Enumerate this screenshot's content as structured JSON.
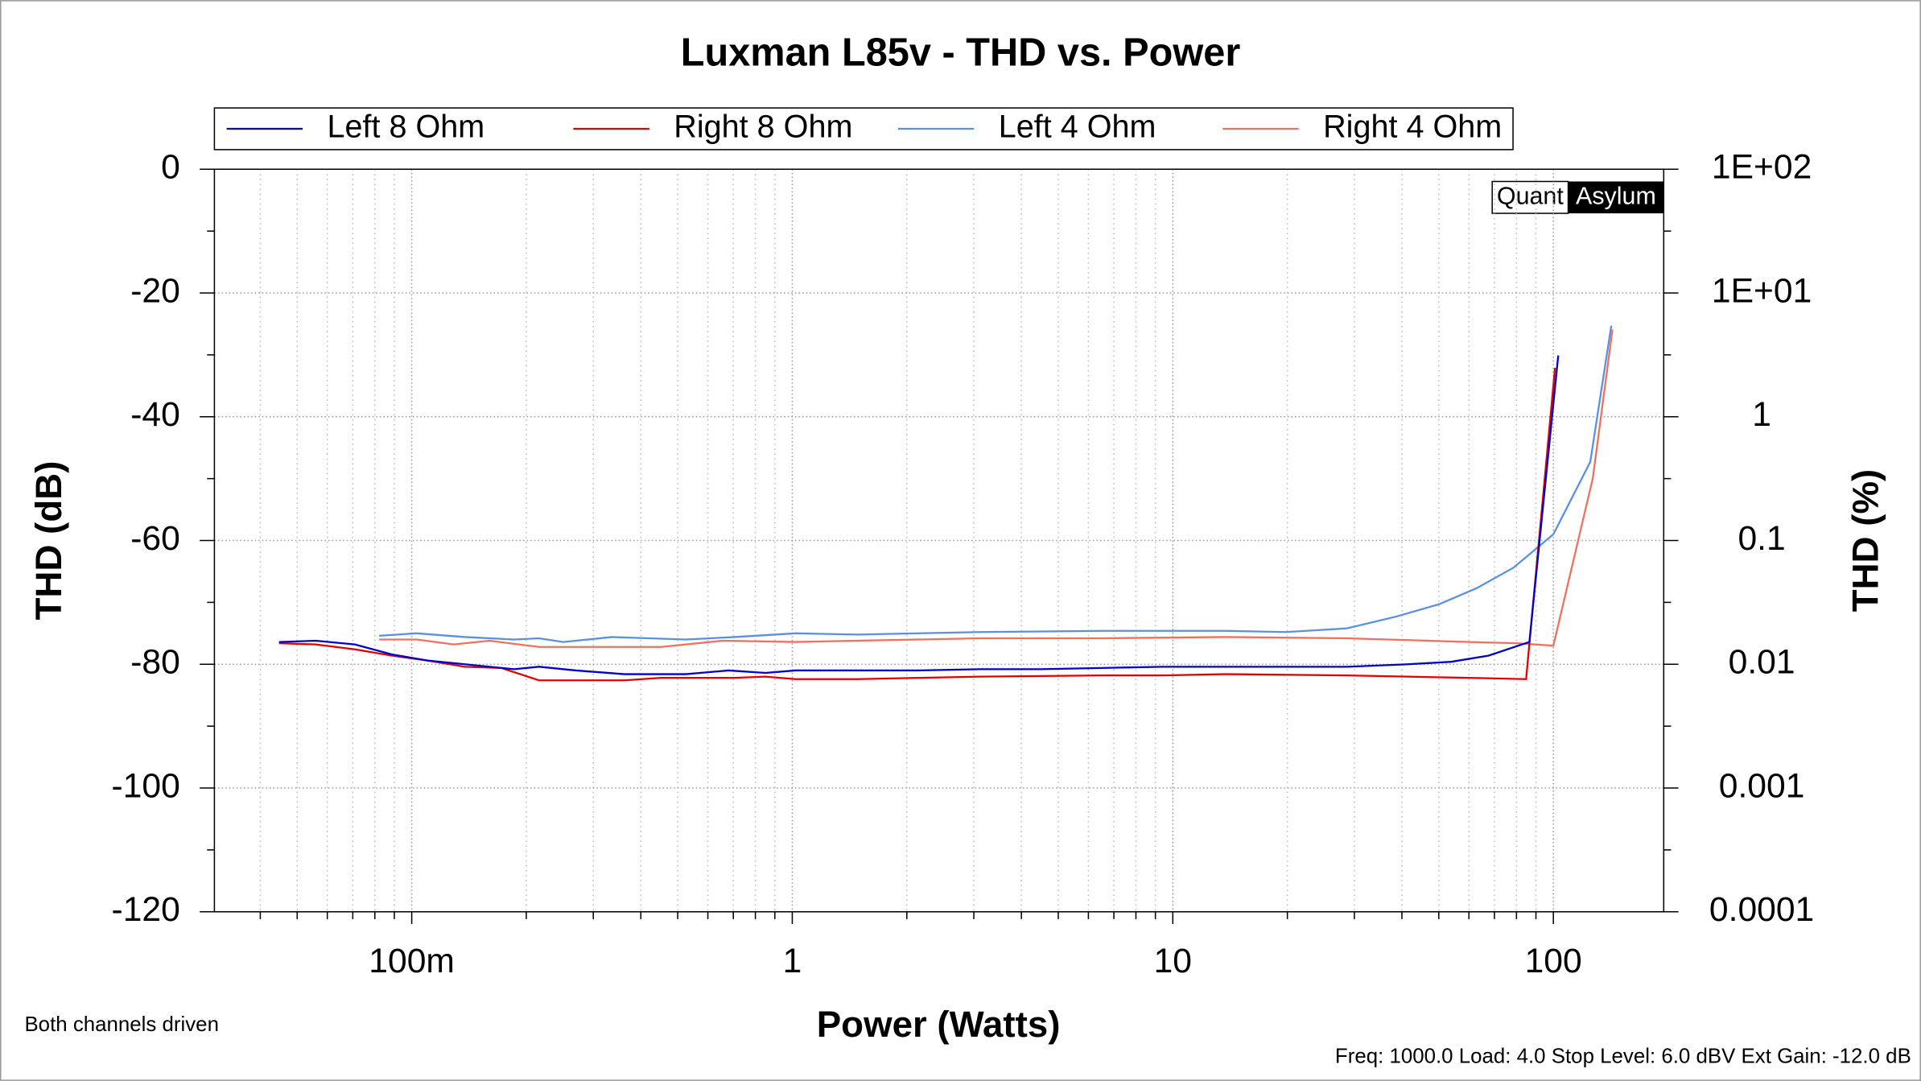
{
  "chart_data": {
    "type": "line",
    "title": "Luxman L85v - THD vs. Power",
    "xlabel": "Power (Watts)",
    "ylabel": "THD (dB)",
    "y2label": "THD (%)",
    "annotations": [
      "Both channels driven",
      "Freq: 1000.0 Load: 4.0 Stop Level: 6.0 dBV  Ext Gain: -12.0 dB"
    ],
    "watermark": [
      "Quant",
      "Asylum"
    ],
    "xscale": "log",
    "xlim": [
      0.0303,
      195
    ],
    "xticks": [
      {
        "value": 0.1,
        "label": "100m"
      },
      1,
      10,
      100
    ],
    "ylim": [
      -120,
      0
    ],
    "yticks": [
      0,
      -20,
      -40,
      -60,
      -80,
      -100,
      -120
    ],
    "y2scale": "log",
    "y2lim": [
      0.0001,
      100
    ],
    "y2ticks": [
      {
        "value": 100,
        "label": "1E+02"
      },
      {
        "value": 10,
        "label": "1E+01"
      },
      1,
      0.1,
      0.01,
      0.001,
      0.0001
    ],
    "grid": true,
    "legend": "top",
    "series": [
      {
        "name": "Left 8 Ohm",
        "color": "#0000c8",
        "x": [
          0.0448,
          0.0559,
          0.0709,
          0.0886,
          0.11,
          0.138,
          0.186,
          0.216,
          0.27,
          0.362,
          0.525,
          0.68,
          0.85,
          1.02,
          1.48,
          2.15,
          3.11,
          4.5,
          6.5,
          9.4,
          13.7,
          19.8,
          28.7,
          41.5,
          53.9,
          67.6,
          86.5,
          103
        ],
        "values": [
          -76.4,
          -76.2,
          -76.8,
          -78.4,
          -79.4,
          -80.0,
          -80.8,
          -80.4,
          -81.0,
          -81.6,
          -81.6,
          -81.0,
          -81.4,
          -81.0,
          -81.0,
          -81.0,
          -80.8,
          -80.8,
          -80.6,
          -80.4,
          -80.4,
          -80.4,
          -80.4,
          -80.0,
          -79.6,
          -78.6,
          -76.4,
          -30.1
        ]
      },
      {
        "name": "Right 8 Ohm",
        "color": "#e00000",
        "x": [
          0.0448,
          0.0559,
          0.0709,
          0.0886,
          0.11,
          0.138,
          0.172,
          0.216,
          0.27,
          0.362,
          0.452,
          0.706,
          0.85,
          1.02,
          1.48,
          2.15,
          3.11,
          6.5,
          9.4,
          13.7,
          28.7,
          41.5,
          60.1,
          84.8,
          101
        ],
        "values": [
          -76.6,
          -76.8,
          -77.6,
          -78.6,
          -79.4,
          -80.4,
          -80.6,
          -82.6,
          -82.6,
          -82.6,
          -82.2,
          -82.2,
          -82.0,
          -82.4,
          -82.4,
          -82.2,
          -82.0,
          -81.8,
          -81.8,
          -81.6,
          -81.8,
          -82.0,
          -82.2,
          -82.4,
          -32.1
        ]
      },
      {
        "name": "Left 4 Ohm",
        "color": "#5b8fe0",
        "x": [
          0.0821,
          0.103,
          0.138,
          0.186,
          0.216,
          0.25,
          0.336,
          0.525,
          0.706,
          1.02,
          1.48,
          3.11,
          6.5,
          13.7,
          19.8,
          28.7,
          38.6,
          50.1,
          62.9,
          78.5,
          100,
          125,
          142
        ],
        "values": [
          -75.4,
          -75.0,
          -75.6,
          -76.0,
          -75.8,
          -76.4,
          -75.6,
          -76.0,
          -75.6,
          -75.0,
          -75.2,
          -74.8,
          -74.6,
          -74.6,
          -74.8,
          -74.2,
          -72.3,
          -70.3,
          -67.7,
          -64.4,
          -59.0,
          -47.3,
          -25.3
        ]
      },
      {
        "name": "Right 4 Ohm",
        "color": "#f07060",
        "x": [
          0.0821,
          0.103,
          0.129,
          0.16,
          0.216,
          0.29,
          0.452,
          0.655,
          1.02,
          1.48,
          3.11,
          6.5,
          13.7,
          28.7,
          60.1,
          80.1,
          100,
          127,
          143
        ],
        "values": [
          -76.0,
          -76.0,
          -76.8,
          -76.2,
          -77.2,
          -77.2,
          -77.2,
          -76.2,
          -76.4,
          -76.2,
          -75.8,
          -75.8,
          -75.6,
          -75.8,
          -76.4,
          -76.6,
          -77.0,
          -49.9,
          -25.9
        ]
      }
    ]
  }
}
